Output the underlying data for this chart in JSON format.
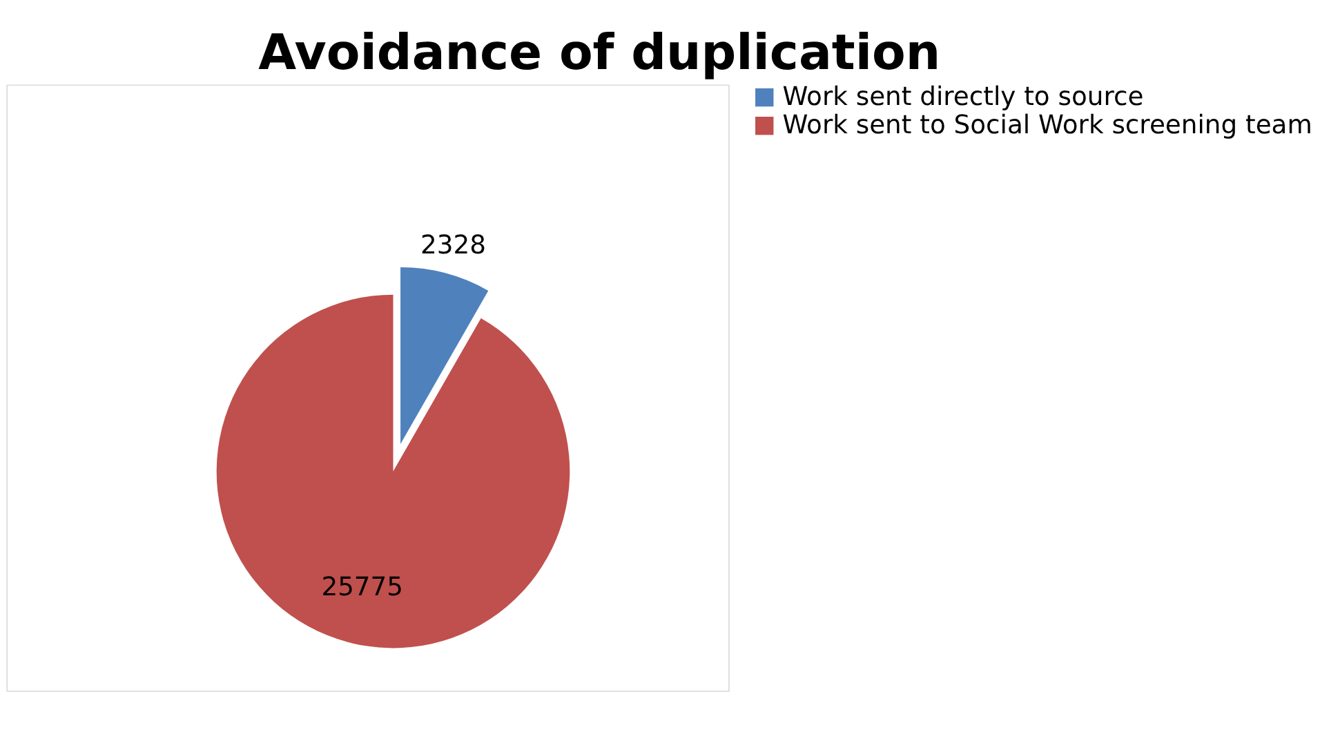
{
  "chart_data": {
    "type": "pie",
    "title": "Avoidance of duplication",
    "categories": [
      "Work sent directly to source",
      "Work sent to Social Work screening team"
    ],
    "values": [
      2328,
      25775
    ],
    "colors": [
      "#4f81bd",
      "#c0504d"
    ],
    "data_labels": true,
    "legend": "right"
  }
}
